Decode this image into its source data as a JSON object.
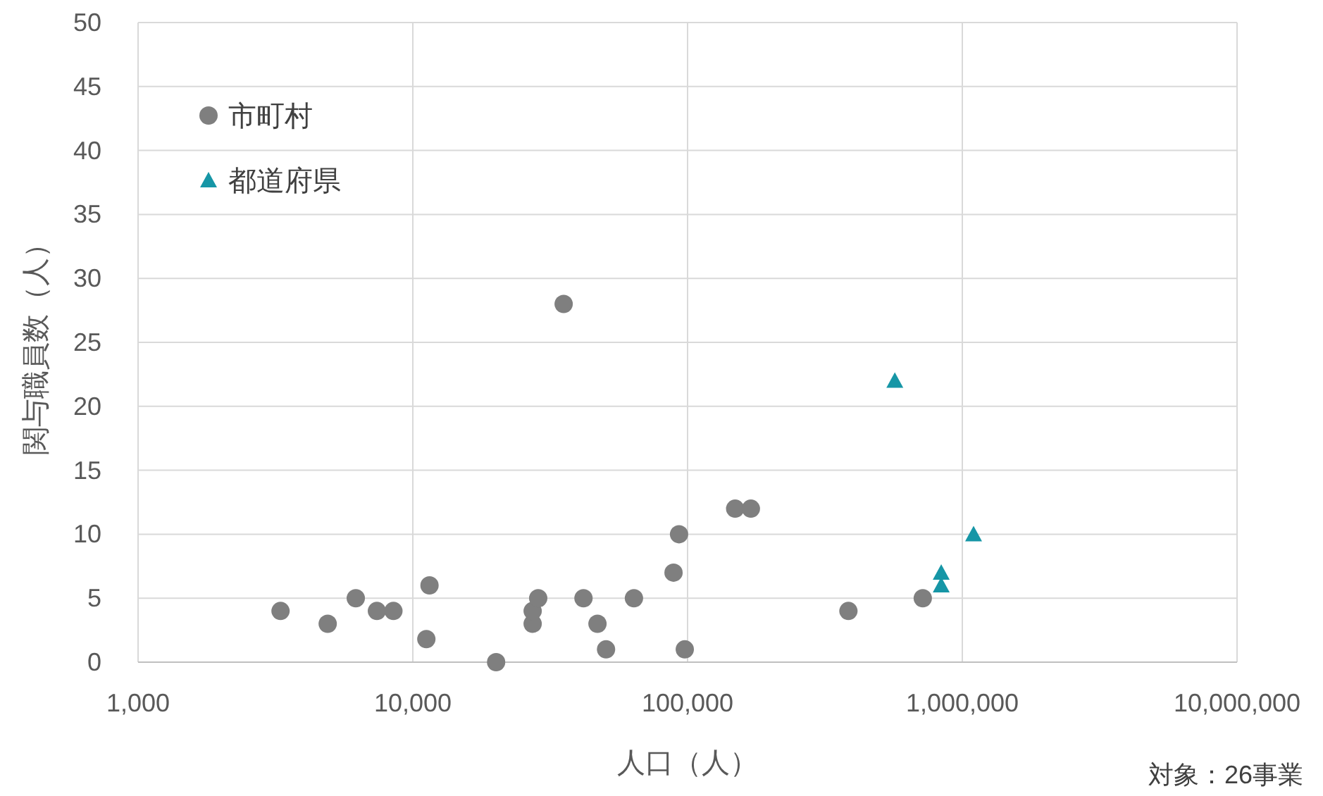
{
  "chart_data": {
    "type": "scatter",
    "xlabel": "人口（人）",
    "ylabel": "関与職員数（人）",
    "annotations": [
      "対象：26事業"
    ],
    "log": "x",
    "grid": true,
    "legend": "top left",
    "xlim": [
      1000,
      10000000
    ],
    "xticks": [
      {
        "value": 1000,
        "label": "1,000"
      },
      {
        "value": 10000,
        "label": "10,000"
      },
      {
        "value": 100000,
        "label": "100,000"
      },
      {
        "value": 1000000,
        "label": "1,000,000"
      },
      {
        "value": 10000000,
        "label": "10,000,000"
      }
    ],
    "ylim": [
      0,
      50
    ],
    "yticks": [
      0,
      5,
      10,
      15,
      20,
      25,
      30,
      35,
      40,
      45,
      50
    ],
    "series": [
      {
        "name": "市町村",
        "color": "#7f7f7f",
        "marker": "circle",
        "x": [
          3300,
          4900,
          6200,
          7400,
          8500,
          11500,
          11200,
          20100,
          27300,
          27300,
          28600,
          35400,
          41800,
          47000,
          50500,
          63800,
          88900,
          93100,
          97700,
          149000,
          170000,
          385000,
          718000
        ],
        "values": [
          4,
          3,
          5,
          4,
          4,
          6,
          1.8,
          0,
          3,
          4,
          5,
          28,
          5,
          3,
          1,
          5,
          7,
          10,
          1,
          12,
          12,
          4,
          5
        ]
      },
      {
        "name": "都道府県",
        "color": "#1696a6",
        "marker": "triangle",
        "x": [
          568000,
          838000,
          838000,
          1099000
        ],
        "values": [
          22,
          7,
          6,
          10
        ]
      }
    ]
  }
}
